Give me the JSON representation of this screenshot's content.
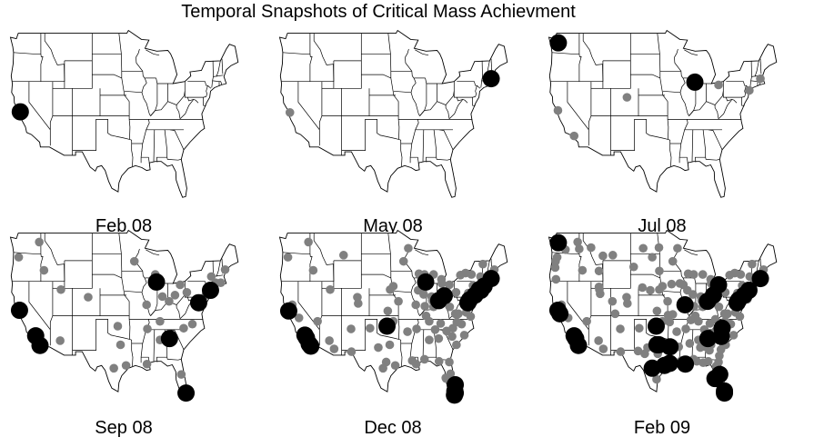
{
  "title": "Temporal Snapshots of Critical Mass Achievment",
  "colors": {
    "background": "#ffffff",
    "map_stroke": "#000000",
    "map_fill": "#ffffff",
    "active_dot": "#808080",
    "critical_mass_dot": "#000000"
  },
  "panels": [
    {
      "label": "Feb 08",
      "gray": [],
      "black": [
        [
          -122.2,
          37.6
        ]
      ]
    },
    {
      "label": "May 08",
      "gray": [
        [
          -122.1,
          37.5
        ]
      ],
      "black": [
        [
          -71.1,
          42.4
        ]
      ]
    },
    {
      "label": "Jul 08",
      "gray": [
        [
          -122.4,
          37.8
        ],
        [
          -118.3,
          34.1
        ],
        [
          -104.9,
          39.7
        ],
        [
          -73.9,
          40.7
        ],
        [
          -71.1,
          42.4
        ],
        [
          -81.7,
          41.5
        ]
      ],
      "black": [
        [
          -122.3,
          47.6
        ],
        [
          -87.7,
          41.9
        ]
      ]
    },
    {
      "label": "Sep 08",
      "gray": [
        [
          -122.6,
          45.5
        ],
        [
          -117.4,
          47.7
        ],
        [
          -116.2,
          43.6
        ],
        [
          -111.9,
          40.8
        ],
        [
          -105.0,
          39.7
        ],
        [
          -97.5,
          35.5
        ],
        [
          -96.8,
          32.8
        ],
        [
          -95.4,
          29.8
        ],
        [
          -98.5,
          29.4
        ],
        [
          -93.3,
          44.9
        ],
        [
          -90.2,
          38.6
        ],
        [
          -88.0,
          43.0
        ],
        [
          -86.2,
          39.8
        ],
        [
          -84.5,
          39.1
        ],
        [
          -83.0,
          40.0
        ],
        [
          -81.7,
          41.5
        ],
        [
          -80.0,
          40.4
        ],
        [
          -75.2,
          40.0
        ],
        [
          -76.6,
          39.3
        ],
        [
          -73.8,
          42.7
        ],
        [
          -72.7,
          41.8
        ],
        [
          -71.4,
          41.8
        ],
        [
          -70.3,
          43.7
        ],
        [
          -78.6,
          35.8
        ],
        [
          -80.8,
          35.2
        ],
        [
          -86.8,
          36.2
        ],
        [
          -90.0,
          35.1
        ],
        [
          -86.8,
          33.5
        ],
        [
          -90.1,
          30.0
        ],
        [
          -81.4,
          28.5
        ],
        [
          -112.1,
          33.4
        ]
      ],
      "black": [
        [
          -122.4,
          37.8
        ],
        [
          -118.3,
          34.1
        ],
        [
          -117.2,
          32.7
        ],
        [
          -84.4,
          33.7
        ],
        [
          -80.2,
          25.8
        ],
        [
          -87.7,
          41.9
        ],
        [
          -77.0,
          38.9
        ],
        [
          -74.0,
          40.7
        ]
      ]
    },
    {
      "label": "Dec 08",
      "gray": [
        [
          -122.6,
          45.5
        ],
        [
          -117.4,
          47.7
        ],
        [
          -116.2,
          43.6
        ],
        [
          -111.9,
          40.8
        ],
        [
          -108.5,
          45.8
        ],
        [
          -105.0,
          39.7
        ],
        [
          -106.6,
          35.1
        ],
        [
          -112.1,
          33.4
        ],
        [
          -110.9,
          32.2
        ],
        [
          -119.8,
          36.7
        ],
        [
          -121.5,
          38.6
        ],
        [
          -115.1,
          36.2
        ],
        [
          -96.7,
          40.8
        ],
        [
          -95.9,
          41.3
        ],
        [
          -97.3,
          37.7
        ],
        [
          -94.6,
          39.1
        ],
        [
          -97.5,
          35.5
        ],
        [
          -95.9,
          36.2
        ],
        [
          -96.8,
          32.8
        ],
        [
          -97.7,
          30.3
        ],
        [
          -98.5,
          29.4
        ],
        [
          -95.4,
          29.8
        ],
        [
          -93.3,
          44.9
        ],
        [
          -92.1,
          46.8
        ],
        [
          -90.2,
          38.6
        ],
        [
          -92.3,
          34.7
        ],
        [
          -90.1,
          30.0
        ],
        [
          -91.1,
          30.5
        ],
        [
          -88.0,
          43.0
        ],
        [
          -89.4,
          43.1
        ],
        [
          -86.2,
          39.8
        ],
        [
          -85.7,
          38.3
        ],
        [
          -84.5,
          39.1
        ],
        [
          -83.0,
          40.0
        ],
        [
          -81.7,
          41.5
        ],
        [
          -83.7,
          42.3
        ],
        [
          -85.7,
          43.0
        ],
        [
          -80.0,
          40.4
        ],
        [
          -86.8,
          36.2
        ],
        [
          -90.0,
          35.1
        ],
        [
          -86.8,
          33.5
        ],
        [
          -88.0,
          30.7
        ],
        [
          -84.3,
          30.4
        ],
        [
          -82.5,
          27.9
        ],
        [
          -81.7,
          30.3
        ],
        [
          -84.4,
          33.7
        ],
        [
          -81.0,
          34.0
        ],
        [
          -80.8,
          35.2
        ],
        [
          -78.6,
          35.8
        ],
        [
          -79.9,
          32.8
        ],
        [
          -77.4,
          37.5
        ],
        [
          -76.3,
          36.9
        ],
        [
          -79.4,
          37.3
        ],
        [
          -81.6,
          38.3
        ],
        [
          -78.9,
          42.9
        ],
        [
          -76.1,
          43.0
        ],
        [
          -77.6,
          43.2
        ],
        [
          -73.8,
          42.7
        ],
        [
          -75.7,
          41.4
        ],
        [
          -76.9,
          40.3
        ],
        [
          -75.5,
          39.7
        ],
        [
          -72.6,
          42.1
        ],
        [
          -72.7,
          41.8
        ],
        [
          -71.4,
          41.8
        ],
        [
          -71.5,
          43.0
        ],
        [
          -70.3,
          43.7
        ],
        [
          -73.2,
          44.5
        ],
        [
          -104.8,
          38.8
        ],
        [
          -106.5,
          31.8
        ],
        [
          -101.8,
          35.2
        ],
        [
          -99.7,
          32.4
        ],
        [
          -83.9,
          35.9
        ],
        [
          -85.3,
          35.0
        ],
        [
          -87.9,
          38.4
        ],
        [
          -89.6,
          40.7
        ],
        [
          -88.2,
          40.1
        ],
        [
          -87.6,
          37.0
        ],
        [
          -82.4,
          34.8
        ],
        [
          -80.2,
          37.3
        ],
        [
          -74.8,
          40.2
        ],
        [
          -73.1,
          40.9
        ],
        [
          -81.4,
          28.6
        ],
        [
          -80.1,
          26.7
        ],
        [
          -82.6,
          28.0
        ],
        [
          -84.1,
          39.8
        ],
        [
          -83.6,
          41.7
        ],
        [
          -86.0,
          39.2
        ],
        [
          -77.9,
          34.2
        ],
        [
          -79.8,
          36.1
        ]
      ],
      "black": [
        [
          -122.4,
          37.7
        ],
        [
          -118.3,
          34.2
        ],
        [
          -117.9,
          33.8
        ],
        [
          -117.2,
          32.9
        ],
        [
          -116.8,
          32.6
        ],
        [
          -97.5,
          35.5
        ],
        [
          -87.7,
          41.9
        ],
        [
          -84.4,
          39.2
        ],
        [
          -83.0,
          39.9
        ],
        [
          -77.0,
          38.9
        ],
        [
          -76.6,
          39.3
        ],
        [
          -75.2,
          40.0
        ],
        [
          -74.1,
          40.8
        ],
        [
          -73.7,
          40.7
        ],
        [
          -72.9,
          41.3
        ],
        [
          -71.1,
          42.4
        ],
        [
          -80.2,
          27.0
        ],
        [
          -80.3,
          26.1
        ],
        [
          -80.2,
          25.8
        ],
        [
          -80.4,
          25.5
        ]
      ]
    },
    {
      "label": "Feb 09",
      "gray": [
        [
          -122.6,
          45.5
        ],
        [
          -123.0,
          44.9
        ],
        [
          -117.4,
          47.7
        ],
        [
          -116.2,
          43.6
        ],
        [
          -111.9,
          40.8
        ],
        [
          -108.5,
          45.8
        ],
        [
          -105.0,
          39.7
        ],
        [
          -104.8,
          38.8
        ],
        [
          -106.6,
          35.1
        ],
        [
          -112.1,
          33.4
        ],
        [
          -110.9,
          32.2
        ],
        [
          -115.1,
          36.2
        ],
        [
          -119.8,
          36.7
        ],
        [
          -121.5,
          38.6
        ],
        [
          -96.7,
          40.8
        ],
        [
          -95.9,
          41.3
        ],
        [
          -97.3,
          37.7
        ],
        [
          -94.6,
          39.1
        ],
        [
          -95.9,
          36.2
        ],
        [
          -93.3,
          44.9
        ],
        [
          -92.1,
          46.8
        ],
        [
          -90.2,
          38.6
        ],
        [
          -92.3,
          34.7
        ],
        [
          -91.1,
          30.5
        ],
        [
          -88.0,
          43.0
        ],
        [
          -89.4,
          43.1
        ],
        [
          -86.2,
          39.8
        ],
        [
          -85.7,
          38.3
        ],
        [
          -83.7,
          42.3
        ],
        [
          -85.7,
          43.0
        ],
        [
          -81.7,
          41.5
        ],
        [
          -80.0,
          40.4
        ],
        [
          -86.8,
          36.2
        ],
        [
          -90.0,
          35.1
        ],
        [
          -86.8,
          33.5
        ],
        [
          -88.0,
          30.7
        ],
        [
          -84.3,
          30.4
        ],
        [
          -81.7,
          30.3
        ],
        [
          -81.0,
          34.0
        ],
        [
          -78.6,
          35.8
        ],
        [
          -79.9,
          32.8
        ],
        [
          -77.4,
          37.5
        ],
        [
          -79.4,
          37.3
        ],
        [
          -81.6,
          38.3
        ],
        [
          -78.9,
          42.9
        ],
        [
          -76.1,
          43.0
        ],
        [
          -77.6,
          43.2
        ],
        [
          -73.8,
          42.7
        ],
        [
          -75.7,
          41.4
        ],
        [
          -76.9,
          40.3
        ],
        [
          -72.6,
          42.1
        ],
        [
          -71.5,
          43.0
        ],
        [
          -70.3,
          43.7
        ],
        [
          -73.2,
          44.5
        ],
        [
          -106.5,
          31.8
        ],
        [
          -101.8,
          35.2
        ],
        [
          -99.7,
          32.4
        ],
        [
          -83.9,
          35.9
        ],
        [
          -85.3,
          35.0
        ],
        [
          -87.9,
          38.4
        ],
        [
          -89.6,
          40.7
        ],
        [
          -88.2,
          40.1
        ],
        [
          -87.6,
          37.0
        ],
        [
          -82.4,
          34.8
        ],
        [
          -80.2,
          37.3
        ],
        [
          -84.1,
          39.8
        ],
        [
          -83.6,
          41.7
        ],
        [
          -86.0,
          39.2
        ],
        [
          -77.9,
          34.2
        ],
        [
          -79.8,
          36.1
        ],
        [
          -84.0,
          32.0
        ],
        [
          -86.3,
          32.4
        ],
        [
          -89.0,
          33.0
        ],
        [
          -88.7,
          36.4
        ],
        [
          -91.8,
          32.5
        ],
        [
          -93.8,
          32.5
        ],
        [
          -92.0,
          30.2
        ],
        [
          -97.1,
          31.5
        ],
        [
          -102.1,
          31.9
        ],
        [
          -97.4,
          27.8
        ],
        [
          -100.4,
          31.5
        ],
        [
          -94.1,
          36.1
        ],
        [
          -94.5,
          37.1
        ],
        [
          -93.3,
          37.2
        ],
        [
          -91.5,
          41.7
        ],
        [
          -93.6,
          41.6
        ],
        [
          -90.6,
          41.5
        ],
        [
          -87.2,
          30.4
        ],
        [
          -85.6,
          30.2
        ],
        [
          -82.3,
          29.7
        ],
        [
          -81.5,
          31.2
        ],
        [
          -81.1,
          32.1
        ],
        [
          -83.6,
          32.8
        ],
        [
          -85.0,
          32.5
        ],
        [
          -82.5,
          36.5
        ],
        [
          -81.3,
          35.5
        ],
        [
          -80.2,
          36.1
        ],
        [
          -76.3,
          36.9
        ],
        [
          -75.6,
          39.2
        ],
        [
          -74.4,
          39.4
        ],
        [
          -122.3,
          47.6
        ],
        [
          -120.5,
          46.6
        ],
        [
          -114.0,
          46.9
        ],
        [
          -111.0,
          45.7
        ],
        [
          -112.0,
          43.5
        ],
        [
          -117.0,
          46.7
        ],
        [
          -123.1,
          44.0
        ],
        [
          -122.9,
          42.3
        ],
        [
          -107.9,
          37.3
        ],
        [
          -108.6,
          39.1
        ],
        [
          -111.7,
          40.2
        ],
        [
          -112.0,
          41.2
        ],
        [
          -100.8,
          46.8
        ],
        [
          -96.8,
          46.9
        ],
        [
          -98.5,
          45.5
        ],
        [
          -96.7,
          43.5
        ],
        [
          -103.2,
          44.1
        ],
        [
          -101.0,
          41.1
        ],
        [
          -99.0,
          40.7
        ]
      ],
      "black": [
        [
          -122.3,
          47.6
        ],
        [
          -122.4,
          37.8
        ],
        [
          -121.9,
          37.3
        ],
        [
          -118.3,
          34.1
        ],
        [
          -117.9,
          33.7
        ],
        [
          -117.2,
          32.7
        ],
        [
          -97.5,
          35.5
        ],
        [
          -96.8,
          32.8
        ],
        [
          -97.3,
          32.8
        ],
        [
          -98.5,
          29.4
        ],
        [
          -95.4,
          29.8
        ],
        [
          -94.1,
          30.1
        ],
        [
          -94.0,
          32.5
        ],
        [
          -90.1,
          30.0
        ],
        [
          -90.2,
          38.6
        ],
        [
          -84.5,
          39.1
        ],
        [
          -83.0,
          40.0
        ],
        [
          -81.7,
          41.5
        ],
        [
          -77.0,
          38.9
        ],
        [
          -76.6,
          39.3
        ],
        [
          -75.2,
          40.0
        ],
        [
          -74.0,
          40.7
        ],
        [
          -71.1,
          42.4
        ],
        [
          -80.8,
          35.2
        ],
        [
          -81.0,
          34.0
        ],
        [
          -84.4,
          33.7
        ],
        [
          -82.6,
          27.9
        ],
        [
          -81.4,
          28.5
        ],
        [
          -80.2,
          26.1
        ],
        [
          -80.2,
          25.8
        ]
      ]
    }
  ]
}
